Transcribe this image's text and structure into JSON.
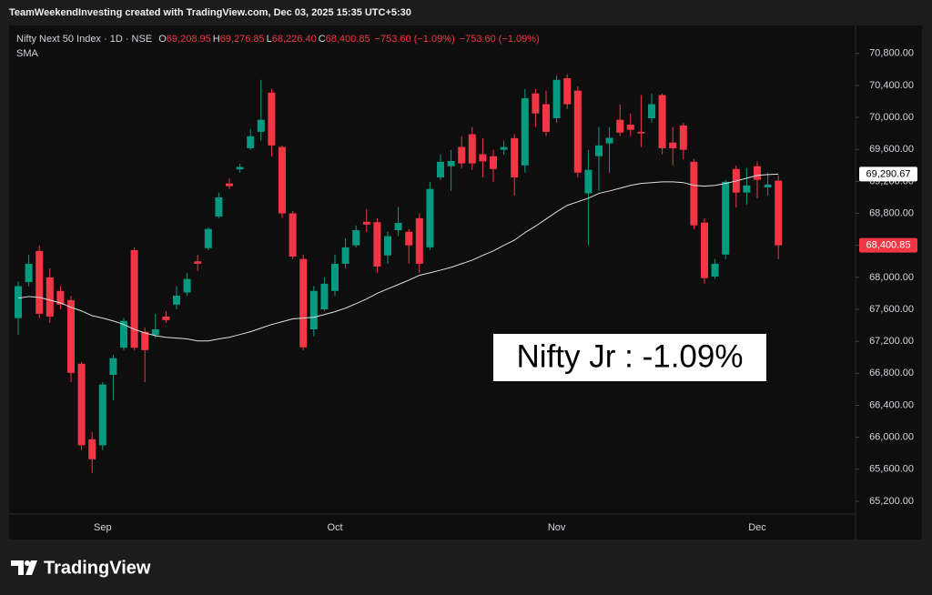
{
  "header": "TeamWeekendInvesting created with TradingView.com, Dec 03, 2025 15:35 UTC+5:30",
  "brand": "TradingView",
  "chart_data": {
    "type": "candlestick",
    "legend": {
      "symbol": "Nifty Next 50 Index · 1D · NSE",
      "ohlc": [
        {
          "key": "O",
          "label": "69,208.95"
        },
        {
          "key": "H",
          "label": "69,276.85"
        },
        {
          "key": "L",
          "label": "68,226.40"
        },
        {
          "key": "C",
          "label": "68,400.85"
        }
      ],
      "change": [
        "−753.60 (−1.09%)",
        "−753.60 (−1.09%)"
      ]
    },
    "annotation": "Nifty Jr : -1.09%",
    "categories": [
      null,
      null,
      null,
      null,
      null,
      null,
      null,
      null,
      "Sep",
      null,
      null,
      null,
      null,
      null,
      null,
      null,
      null,
      null,
      null,
      null,
      null,
      null,
      null,
      null,
      null,
      null,
      null,
      null,
      null,
      null,
      "Oct",
      null,
      null,
      null,
      null,
      null,
      null,
      null,
      null,
      null,
      null,
      null,
      null,
      null,
      null,
      null,
      null,
      null,
      null,
      null,
      null,
      "Nov",
      null,
      null,
      null,
      null,
      null,
      null,
      null,
      null,
      null,
      null,
      null,
      null,
      null,
      null,
      null,
      null,
      null,
      null,
      "Dec",
      null,
      null
    ],
    "open": [
      67490,
      67940,
      68330,
      68000,
      67830,
      67715,
      66920,
      65975,
      65900,
      66780,
      67120,
      68340,
      67320,
      67280,
      67510,
      67660,
      67810,
      68200,
      68365,
      68760,
      69175,
      69350,
      69615,
      69820,
      70310,
      69630,
      68800,
      68230,
      67350,
      67600,
      67830,
      68170,
      68400,
      68695,
      68690,
      68275,
      68590,
      68570,
      68740,
      68375,
      69250,
      69390,
      69630,
      69790,
      69540,
      69515,
      69595,
      69740,
      69400,
      70300,
      70165,
      69990,
      70490,
      70335,
      69050,
      69515,
      69675,
      69970,
      69910,
      69820,
      69990,
      70280,
      69685,
      69900,
      69445,
      68685,
      68010,
      68285,
      69355,
      69060,
      69390,
      69125,
      69208.95
    ],
    "high": [
      67950,
      68285,
      68400,
      68115,
      67890,
      67770,
      66940,
      66065,
      66690,
      67030,
      67490,
      68375,
      67375,
      67545,
      67580,
      67890,
      68057,
      68285,
      68626,
      69060,
      69240,
      69420,
      69855,
      70470,
      70355,
      69650,
      68830,
      68285,
      67890,
      68000,
      68285,
      68490,
      68650,
      68855,
      68740,
      68570,
      68880,
      68605,
      68800,
      69195,
      69535,
      69595,
      69765,
      69880,
      69740,
      69595,
      69710,
      69790,
      70355,
      70355,
      70335,
      70525,
      70540,
      70390,
      69595,
      69880,
      69880,
      70165,
      70050,
      70280,
      70300,
      70300,
      69880,
      69935,
      69480,
      68740,
      68230,
      69220,
      69400,
      69365,
      69450,
      69310,
      69276.85
    ],
    "low": [
      67280,
      67887,
      67490,
      67430,
      67600,
      66690,
      65840,
      65555,
      65840,
      66465,
      67090,
      67090,
      66690,
      67240,
      67430,
      67600,
      67770,
      68080,
      68340,
      68740,
      69105,
      69310,
      69595,
      69710,
      69515,
      68740,
      68230,
      67090,
      67260,
      67580,
      67770,
      68115,
      68375,
      68570,
      68057,
      68170,
      68515,
      68170,
      68057,
      68340,
      69220,
      69080,
      69365,
      69345,
      69250,
      69195,
      69535,
      69025,
      69310,
      69880,
      69765,
      69935,
      70105,
      69250,
      68400,
      69080,
      69310,
      69765,
      69765,
      69630,
      69935,
      69535,
      69400,
      69480,
      68605,
      67920,
      67980,
      68230,
      68875,
      68910,
      68990,
      69025,
      68226.4
    ],
    "close": [
      67890,
      68170,
      67545,
      67510,
      67660,
      66805,
      65900,
      65725,
      66660,
      66990,
      67455,
      67120,
      67090,
      67350,
      67465,
      67770,
      67980,
      68170,
      68605,
      69000,
      69140,
      69380,
      69765,
      69970,
      69650,
      68800,
      68260,
      67125,
      67830,
      67920,
      68170,
      68375,
      68590,
      68660,
      68135,
      68515,
      68680,
      68400,
      68170,
      69105,
      69445,
      69455,
      69425,
      69425,
      69450,
      69355,
      69630,
      69250,
      70240,
      70050,
      69820,
      70470,
      70165,
      69310,
      69345,
      69650,
      69745,
      69810,
      69845,
      69800,
      70165,
      69615,
      69615,
      69595,
      68650,
      67990,
      68170,
      69195,
      69060,
      69150,
      69220,
      69160,
      68400.85
    ],
    "last_close_label": "68,400.85",
    "up_color": "#089981",
    "down_color": "#f23645",
    "series": [
      {
        "name": "SMA",
        "color": "#e0e0e0",
        "last_value_label": "69,290.67",
        "values": [
          67740,
          67760,
          67750,
          67715,
          67680,
          67625,
          67580,
          67520,
          67490,
          67455,
          67410,
          67350,
          67305,
          67270,
          67250,
          67240,
          67230,
          67205,
          67205,
          67230,
          67250,
          67285,
          67320,
          67365,
          67410,
          67445,
          67480,
          67490,
          67500,
          67535,
          67570,
          67615,
          67670,
          67730,
          67800,
          67855,
          67910,
          67965,
          68025,
          68057,
          68090,
          68125,
          68170,
          68215,
          68275,
          68330,
          68400,
          68465,
          68560,
          68640,
          68730,
          68820,
          68900,
          68945,
          68990,
          69050,
          69080,
          69115,
          69150,
          69175,
          69185,
          69195,
          69195,
          69185,
          69150,
          69140,
          69150,
          69175,
          69205,
          69240,
          69275,
          69285,
          69290.67
        ]
      }
    ],
    "ylim": [
      65040,
      71150
    ],
    "yticks": [
      {
        "value": 65200,
        "label": "65,200.00"
      },
      {
        "value": 65600,
        "label": "65,600.00"
      },
      {
        "value": 66000,
        "label": "66,000.00"
      },
      {
        "value": 66400,
        "label": "66,400.00"
      },
      {
        "value": 66800,
        "label": "66,800.00"
      },
      {
        "value": 67200,
        "label": "67,200.00"
      },
      {
        "value": 67600,
        "label": "67,600.00"
      },
      {
        "value": 68000,
        "label": "68,000.00"
      },
      {
        "value": 68400,
        "label": "68,400.00"
      },
      {
        "value": 68800,
        "label": "68,800.00"
      },
      {
        "value": 69200,
        "label": "69,200.00"
      },
      {
        "value": 69600,
        "label": "69,600.00"
      },
      {
        "value": 70000,
        "label": "70,000.00"
      },
      {
        "value": 70400,
        "label": "70,400.00"
      },
      {
        "value": 70800,
        "label": "70,800.00"
      }
    ],
    "grid": false
  }
}
